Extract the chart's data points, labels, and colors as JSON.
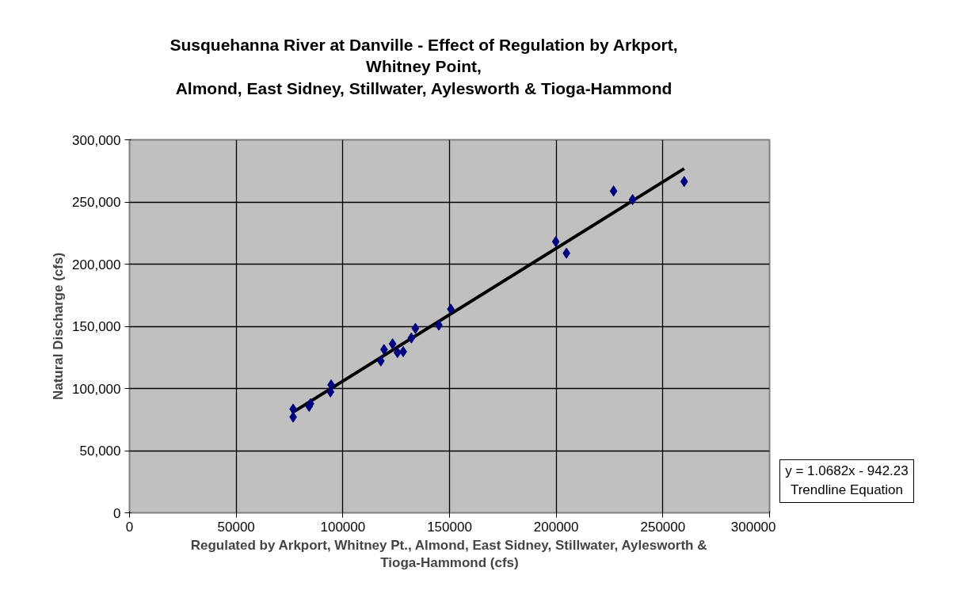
{
  "chart_data": {
    "type": "scatter",
    "title": "Susquehanna River at Danville - Effect of Regulation by Arkport,\nWhitney Point,\nAlmond, East Sidney, Stillwater, Aylesworth & Tioga-Hammond",
    "xlabel": "Regulated by Arkport, Whitney Pt., Almond, East Sidney, Stillwater, Aylesworth &\nTioga-Hammond (cfs)",
    "ylabel": "Natural Discharge (cfs)",
    "series": [
      {
        "type": "scatter",
        "color": "#000080",
        "marker": "diamond",
        "x": [
          76700,
          76700,
          84800,
          84200,
          94500,
          94200,
          117800,
          119300,
          123300,
          125600,
          128300,
          132100,
          134000,
          145000,
          150600,
          199800,
          204800,
          226900,
          235800,
          260000
        ],
        "values": [
          83400,
          77000,
          87700,
          85600,
          102900,
          97200,
          122100,
          131300,
          135900,
          128900,
          129600,
          140600,
          148300,
          150900,
          163800,
          218100,
          208800,
          258800,
          251900,
          266400
        ]
      },
      {
        "type": "line",
        "color": "#000000",
        "line_style": "solid",
        "x": [
          76700,
          260000
        ],
        "values": [
          81000,
          276800
        ]
      }
    ],
    "xlim": [
      0,
      300000
    ],
    "ylim": [
      0,
      300000
    ],
    "xticks": [
      0,
      50000,
      100000,
      150000,
      200000,
      250000,
      300000
    ],
    "yticks": [
      0,
      {
        "value": 50000,
        "label": "50,000"
      },
      {
        "value": 100000,
        "label": "100,000"
      },
      {
        "value": 150000,
        "label": "150,000"
      },
      {
        "value": 200000,
        "label": "200,000"
      },
      {
        "value": 250000,
        "label": "250,000"
      },
      {
        "value": 300000,
        "label": "300,000"
      }
    ],
    "grid": true,
    "annotations": [
      "y = 1.0682x - 942.23\nTrendline Equation"
    ]
  }
}
